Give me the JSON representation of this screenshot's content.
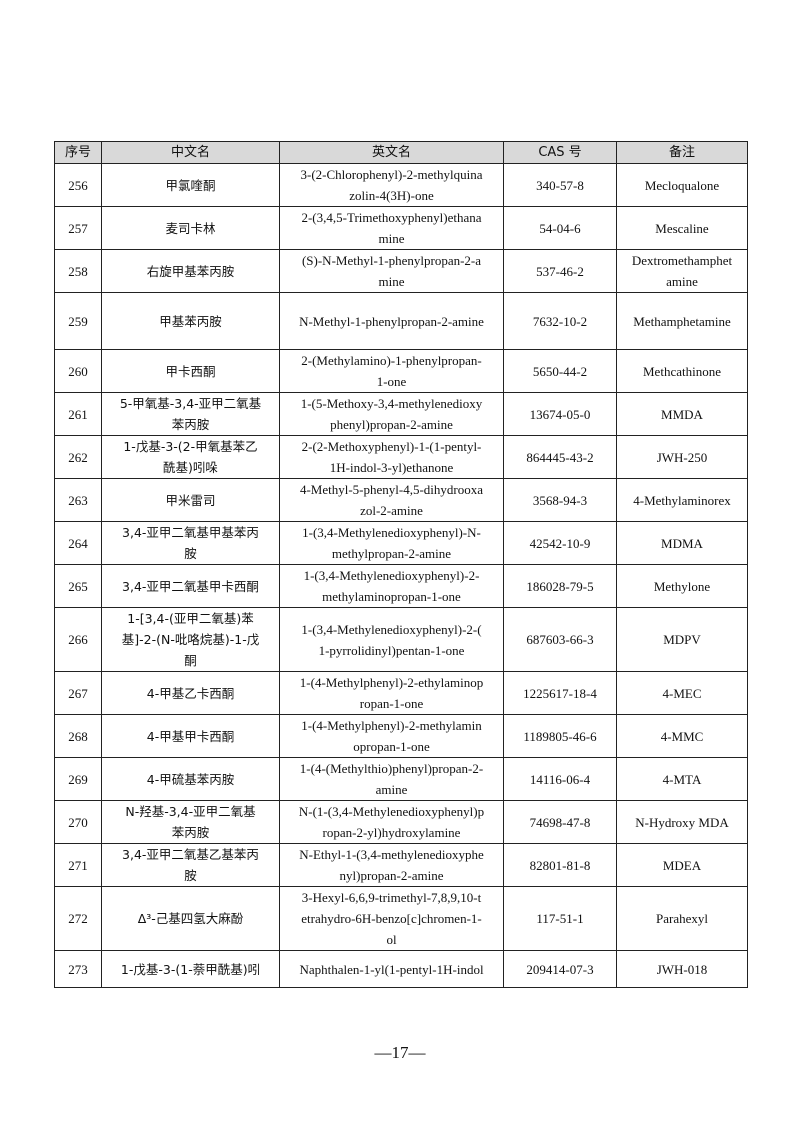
{
  "table": {
    "headers": [
      "序号",
      "中文名",
      "英文名",
      "CAS 号",
      "备注"
    ],
    "rows": [
      [
        "256",
        "甲氯喹酮",
        "3-(2-Chlorophenyl)-2-methylquina\nzolin-4(3H)-one",
        "340-57-8",
        "Mecloqualone"
      ],
      [
        "257",
        "麦司卡林",
        "2-(3,4,5-Trimethoxyphenyl)ethana\nmine",
        "54-04-6",
        "Mescaline"
      ],
      [
        "258",
        "右旋甲基苯丙胺",
        "(S)-N-Methyl-1-phenylpropan-2-a\nmine",
        "537-46-2",
        "Dextromethamphet\namine"
      ],
      [
        "259",
        "甲基苯丙胺",
        "N-Methyl-1-phenylpropan-2-amine",
        "7632-10-2",
        "Methamphetamine"
      ],
      [
        "260",
        "甲卡西酮",
        "2-(Methylamino)-1-phenylpropan-\n1-one",
        "5650-44-2",
        "Methcathinone"
      ],
      [
        "261",
        "5-甲氧基-3,4-亚甲二氧基\n苯丙胺",
        "1-(5-Methoxy-3,4-methylenedioxy\nphenyl)propan-2-amine",
        "13674-05-0",
        "MMDA"
      ],
      [
        "262",
        "1-戊基-3-(2-甲氧基苯乙\n酰基)吲哚",
        "2-(2-Methoxyphenyl)-1-(1-pentyl-\n1H-indol-3-yl)ethanone",
        "864445-43-2",
        "JWH-250"
      ],
      [
        "263",
        "甲米雷司",
        "4-Methyl-5-phenyl-4,5-dihydrooxa\nzol-2-amine",
        "3568-94-3",
        "4-Methylaminorex"
      ],
      [
        "264",
        "3,4-亚甲二氧基甲基苯丙\n胺",
        "1-(3,4-Methylenedioxyphenyl)-N-\nmethylpropan-2-amine",
        "42542-10-9",
        "MDMA"
      ],
      [
        "265",
        "3,4-亚甲二氧基甲卡西酮",
        "1-(3,4-Methylenedioxyphenyl)-2-\nmethylaminopropan-1-one",
        "186028-79-5",
        "Methylone"
      ],
      [
        "266",
        "1-[3,4-(亚甲二氧基)苯\n基]-2-(N-吡咯烷基)-1-戊\n酮",
        "1-(3,4-Methylenedioxyphenyl)-2-(\n1-pyrrolidinyl)pentan-1-one",
        "687603-66-3",
        "MDPV"
      ],
      [
        "267",
        "4-甲基乙卡西酮",
        "1-(4-Methylphenyl)-2-ethylaminop\nropan-1-one",
        "1225617-18-4",
        "4-MEC"
      ],
      [
        "268",
        "4-甲基甲卡西酮",
        "1-(4-Methylphenyl)-2-methylamin\nopropan-1-one",
        "1189805-46-6",
        "4-MMC"
      ],
      [
        "269",
        "4-甲硫基苯丙胺",
        "1-(4-(Methylthio)phenyl)propan-2-\namine",
        "14116-06-4",
        "4-MTA"
      ],
      [
        "270",
        "N-羟基-3,4-亚甲二氧基\n苯丙胺",
        "N-(1-(3,4-Methylenedioxyphenyl)p\nropan-2-yl)hydroxylamine",
        "74698-47-8",
        "N-Hydroxy MDA"
      ],
      [
        "271",
        "3,4-亚甲二氧基乙基苯丙\n胺",
        "N-Ethyl-1-(3,4-methylenedioxyphe\nnyl)propan-2-amine",
        "82801-81-8",
        "MDEA"
      ],
      [
        "272",
        "Δ³-己基四氢大麻酚",
        "3-Hexyl-6,6,9-trimethyl-7,8,9,10-t\netrahydro-6H-benzo[c]chromen-1-\nol",
        "117-51-1",
        "Parahexyl"
      ],
      [
        "273",
        "1-戊基-3-(1-萘甲酰基)吲",
        "Naphthalen-1-yl(1-pentyl-1H-indol",
        "209414-07-3",
        "JWH-018"
      ]
    ]
  },
  "footer": {
    "page_number": "—17—"
  }
}
